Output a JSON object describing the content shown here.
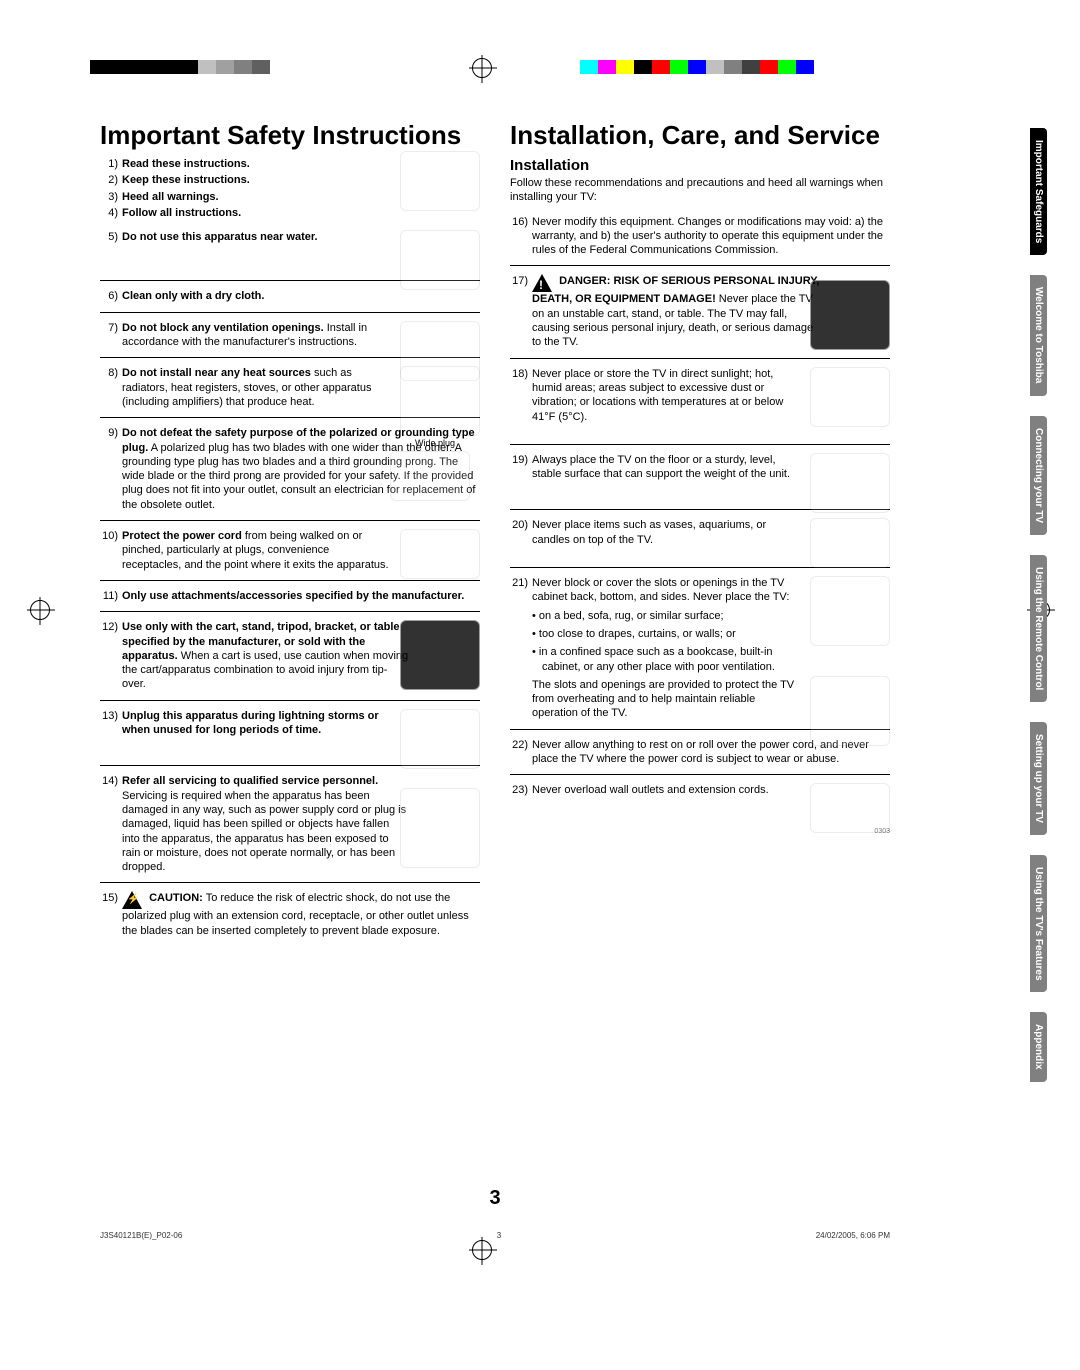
{
  "colorbars": {
    "left": [
      "#000000",
      "#000000",
      "#000000",
      "#000000",
      "#000000",
      "#000000",
      "#c0c0c0",
      "#a0a0a0",
      "#808080",
      "#606060",
      "#ffffff",
      "#ffffff"
    ],
    "right": [
      "#00ffff",
      "#ff00ff",
      "#ffff00",
      "#000000",
      "#ff0000",
      "#00ff00",
      "#0000ff",
      "#c0c0c0",
      "#808080",
      "#404040",
      "#ff0000",
      "#00ff00",
      "#0000ff",
      "#ffffff",
      "#ffffff"
    ]
  },
  "left": {
    "title": "Important Safety Instructions",
    "i1": {
      "n": "1)",
      "b": "Read these instructions."
    },
    "i2": {
      "n": "2)",
      "b": "Keep these instructions."
    },
    "i3": {
      "n": "3)",
      "b": "Heed all warnings."
    },
    "i4": {
      "n": "4)",
      "b": "Follow all instructions."
    },
    "i5": {
      "n": "5)",
      "b": "Do not use this apparatus near water."
    },
    "i6": {
      "n": "6)",
      "b": "Clean only with a dry cloth."
    },
    "i7": {
      "n": "7)",
      "b": "Do not block any ventilation openings.",
      "t": " Install in accordance with the manufacturer's instructions."
    },
    "i8": {
      "n": "8)",
      "b": "Do not install near any heat sources",
      "t": " such as radiators, heat registers, stoves, or other apparatus (including amplifiers) that produce heat."
    },
    "i9": {
      "n": "9)",
      "b": "Do not defeat the safety purpose of the polarized or grounding type plug.",
      "t": " A polarized plug has two blades with one wider than the other. A grounding type plug has two blades and a third grounding prong. The wide blade or the third prong are provided for your safety. If the provided plug does not fit into your outlet, consult an electrician for replacement of the obsolete outlet.",
      "cap": "Wide plug"
    },
    "i10": {
      "n": "10)",
      "b": "Protect the power cord",
      "t": " from being walked on or pinched, particularly at plugs, convenience receptacles, and the point where it exits the apparatus."
    },
    "i11": {
      "n": "11)",
      "b": "Only use attachments/accessories specified by the manufacturer."
    },
    "i12": {
      "n": "12)",
      "b": "Use only with the cart, stand, tripod, bracket, or table specified by the manufacturer, or sold with the apparatus.",
      "t": " When a cart is used, use caution when moving the cart/apparatus combination to avoid injury from tip-over."
    },
    "i13": {
      "n": "13)",
      "b": "Unplug this apparatus during lightning storms or when unused for long periods of time."
    },
    "i14": {
      "n": "14)",
      "b": "Refer all servicing to qualified service personnel.",
      "t": " Servicing is required when the apparatus has been damaged in any way, such as power supply cord or plug is damaged, liquid has been spilled or objects have fallen into the apparatus, the apparatus has been exposed to rain or moisture, does not operate normally, or has been dropped."
    },
    "i15": {
      "n": "15)",
      "b": "CAUTION:",
      "t": " To reduce the risk of electric shock, do not use the polarized plug with an extension cord, receptacle, or other outlet unless the blades can be inserted completely to prevent blade exposure."
    }
  },
  "right": {
    "title": "Installation, Care, and Service",
    "sub": "Installation",
    "intro": "Follow these recommendations and precautions and heed all warnings when installing your TV:",
    "i16": {
      "n": "16)",
      "t": "Never modify this equipment. Changes or modifications may void: a) the warranty, and b) the user's authority to operate this equipment under the rules of the Federal Communications Commission."
    },
    "i17": {
      "n": "17)",
      "b": "DANGER: RISK OF SERIOUS PERSONAL INJURY, DEATH, OR EQUIPMENT DAMAGE!",
      "t": " Never place the TV on an unstable cart, stand, or table. The TV may fall, causing serious personal injury, death, or serious damage to the TV."
    },
    "i18": {
      "n": "18)",
      "t": "Never place or store the TV in direct sunlight; hot, humid areas; areas subject to excessive dust or vibration; or locations with temperatures at or below 41°F (5°C)."
    },
    "i19": {
      "n": "19)",
      "t": "Always place the TV on the floor or a sturdy, level, stable surface that can support the weight of the unit."
    },
    "i20": {
      "n": "20)",
      "t": "Never place items such as vases, aquariums, or candles on top of the TV."
    },
    "i21": {
      "n": "21)",
      "t": "Never block or cover the slots or openings in the TV cabinet back, bottom, and sides. Never place the TV:",
      "b1": "on a bed, sofa, rug, or similar surface;",
      "b2": "too close to drapes, curtains, or walls; or",
      "b3": "in a confined space such as a bookcase, built-in cabinet, or any other place with poor ventilation.",
      "tail": "The slots and openings are provided to protect the TV from overheating and to help maintain reliable operation of the TV."
    },
    "i22": {
      "n": "22)",
      "t": "Never allow anything to rest on or roll over the power cord, and never place the TV where the power cord is subject to wear or abuse."
    },
    "i23": {
      "n": "23)",
      "t": "Never overload wall outlets and extension cords."
    }
  },
  "tabs": [
    "Important Safeguards",
    "Welcome to Toshiba",
    "Connecting your TV",
    "Using the Remote Control",
    "Setting up your TV",
    "Using the TV's Features",
    "Appendix"
  ],
  "pagenum": "3",
  "foot": {
    "l": "J3S40121B(E)_P02-06",
    "c": "3",
    "r": "24/02/2005, 6:06 PM"
  },
  "code": "0303"
}
